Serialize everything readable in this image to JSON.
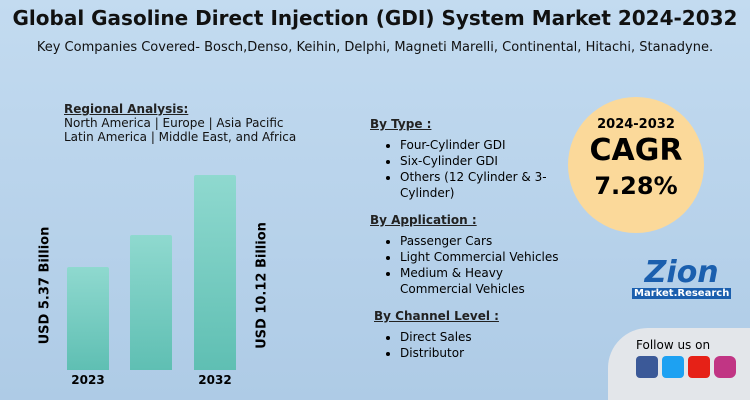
{
  "header": {
    "title": "Global Gasoline Direct Injection (GDI) System Market 2024-2032",
    "subtitle": "Key Companies Covered- Bosch,Denso, Keihin, Delphi, Magneti Marelli, Continental, Hitachi, Stanadyne."
  },
  "regional": {
    "heading": "Regional Analysis:",
    "lines": [
      "North America | Europe | Asia Pacific",
      "Latin America | Middle East, and Africa"
    ]
  },
  "chart_data": {
    "type": "bar",
    "categories": [
      "2023",
      null,
      "2032"
    ],
    "values": [
      5.37,
      7.0,
      10.12
    ],
    "value_labels": [
      "USD 5.37 Billion",
      null,
      "USD 10.12 Billion"
    ],
    "color": "#8fd9cf"
  },
  "segments": [
    {
      "heading": "By Type :",
      "items": [
        "Four-Cylinder GDI",
        "Six-Cylinder GDI",
        "Others (12 Cylinder & 3-Cylinder)"
      ]
    },
    {
      "heading": "By Application :",
      "items": [
        "Passenger Cars",
        "Light Commercial Vehicles",
        "Medium & Heavy Commercial Vehicles"
      ]
    },
    {
      "heading": "By Channel Level :",
      "items": [
        "Direct Sales",
        "Distributor"
      ]
    }
  ],
  "cagr": {
    "period": "2024-2032",
    "label": "CAGR",
    "value": "7.28%"
  },
  "logo": {
    "name": "Zion",
    "tagline": "Market.Research"
  },
  "social": {
    "text": "Follow us on"
  }
}
